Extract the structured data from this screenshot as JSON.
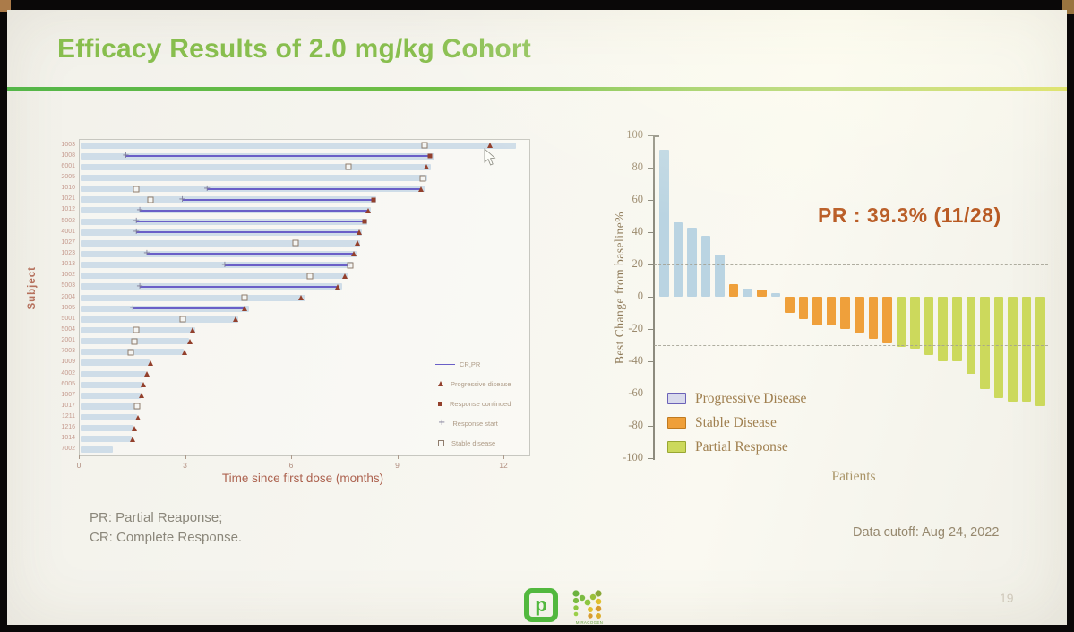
{
  "slide": {
    "title": "Efficacy Results of 2.0 mg/kg Cohort",
    "footnotes": [
      "PR: Partial Reaponse;",
      "CR: Complete Response."
    ],
    "data_cutoff": "Data cutoff: Aug 24, 2022",
    "page_number": "19",
    "logo_m_text": "MIRACOGEN"
  },
  "colors": {
    "title_green": "#88be4e",
    "rule_green": "#54b648",
    "swimmer_bar_blue": "#cfdde8",
    "response_line_purple": "#6a5fc7",
    "marker_dark_red": "#93402c",
    "waterfall_pd_blue": "#bad4e2",
    "waterfall_sd_orange": "#efa03b",
    "waterfall_pr_green": "#ccd95c",
    "annotation_orange": "#b7571f"
  },
  "chart_data": [
    {
      "type": "swimmer",
      "name": "duration-on-treatment",
      "xlabel": "Time since first dose (months)",
      "ylabel": "Subject",
      "xticks": [
        0,
        3,
        6,
        9,
        12
      ],
      "xlim": [
        0,
        12.7
      ],
      "legend": [
        {
          "marker": "line",
          "label": "CR,PR"
        },
        {
          "marker": "triangle",
          "label": "Progressive disease"
        },
        {
          "marker": "filled-square",
          "label": "Response continued"
        },
        {
          "marker": "plus",
          "label": "Response start"
        },
        {
          "marker": "open-square",
          "label": "Stable disease"
        }
      ],
      "subjects": [
        {
          "id": "1003",
          "bar": 12.3,
          "line": null,
          "markers": [
            {
              "type": "open-square",
              "x": 9.75
            },
            {
              "type": "triangle",
              "x": 11.6
            }
          ]
        },
        {
          "id": "1008",
          "bar": 10.0,
          "line": [
            1.3,
            9.9
          ],
          "line_end": "filled-square",
          "markers": []
        },
        {
          "id": "6001",
          "bar": 9.9,
          "line": null,
          "markers": [
            {
              "type": "open-square",
              "x": 7.6
            },
            {
              "type": "triangle",
              "x": 9.8
            }
          ]
        },
        {
          "id": "2005",
          "bar": 9.8,
          "line": null,
          "markers": [
            {
              "type": "open-square",
              "x": 9.7
            }
          ]
        },
        {
          "id": "1010",
          "bar": 9.75,
          "line": [
            3.6,
            9.65
          ],
          "line_end": "triangle",
          "markers": [
            {
              "type": "open-square",
              "x": 1.6
            }
          ]
        },
        {
          "id": "1021",
          "bar": 8.35,
          "line": [
            2.9,
            8.3
          ],
          "line_end": "filled-square",
          "markers": [
            {
              "type": "open-square",
              "x": 2.0
            }
          ]
        },
        {
          "id": "1012",
          "bar": 8.2,
          "line": [
            1.7,
            8.15
          ],
          "line_end": "triangle",
          "markers": []
        },
        {
          "id": "5002",
          "bar": 8.1,
          "line": [
            1.6,
            8.05
          ],
          "line_end": "filled-square",
          "markers": []
        },
        {
          "id": "4001",
          "bar": 7.95,
          "line": [
            1.6,
            7.9
          ],
          "line_end": "triangle",
          "markers": []
        },
        {
          "id": "1027",
          "bar": 7.9,
          "line": null,
          "markers": [
            {
              "type": "open-square",
              "x": 6.1
            },
            {
              "type": "triangle",
              "x": 7.85
            }
          ]
        },
        {
          "id": "1023",
          "bar": 7.8,
          "line": [
            1.9,
            7.75
          ],
          "line_end": "triangle",
          "markers": []
        },
        {
          "id": "1013",
          "bar": 7.7,
          "line": [
            4.1,
            7.65
          ],
          "line_end": "open-square",
          "markers": []
        },
        {
          "id": "1002",
          "bar": 7.55,
          "line": null,
          "markers": [
            {
              "type": "open-square",
              "x": 6.5
            },
            {
              "type": "triangle",
              "x": 7.5
            }
          ]
        },
        {
          "id": "5003",
          "bar": 7.4,
          "line": [
            1.7,
            7.3
          ],
          "line_end": "triangle",
          "markers": []
        },
        {
          "id": "2004",
          "bar": 6.35,
          "line": null,
          "markers": [
            {
              "type": "open-square",
              "x": 4.65
            },
            {
              "type": "triangle",
              "x": 6.25
            }
          ]
        },
        {
          "id": "1005",
          "bar": 4.75,
          "line": [
            1.5,
            4.65
          ],
          "line_end": "triangle",
          "markers": []
        },
        {
          "id": "5001",
          "bar": 4.45,
          "line": null,
          "markers": [
            {
              "type": "open-square",
              "x": 2.9
            },
            {
              "type": "triangle",
              "x": 4.4
            }
          ]
        },
        {
          "id": "5004",
          "bar": 3.25,
          "line": null,
          "markers": [
            {
              "type": "open-square",
              "x": 1.6
            },
            {
              "type": "triangle",
              "x": 3.2
            }
          ]
        },
        {
          "id": "2001",
          "bar": 3.05,
          "line": null,
          "markers": [
            {
              "type": "open-square",
              "x": 1.55
            },
            {
              "type": "triangle",
              "x": 3.1
            }
          ]
        },
        {
          "id": "7003",
          "bar": 2.9,
          "line": null,
          "markers": [
            {
              "type": "open-square",
              "x": 1.45
            },
            {
              "type": "triangle",
              "x": 2.95
            }
          ]
        },
        {
          "id": "1009",
          "bar": 1.95,
          "line": null,
          "markers": [
            {
              "type": "triangle",
              "x": 2.0
            }
          ]
        },
        {
          "id": "4002",
          "bar": 1.85,
          "line": null,
          "markers": [
            {
              "type": "triangle",
              "x": 1.9
            }
          ]
        },
        {
          "id": "6005",
          "bar": 1.75,
          "line": null,
          "markers": [
            {
              "type": "triangle",
              "x": 1.8
            }
          ]
        },
        {
          "id": "1007",
          "bar": 1.7,
          "line": null,
          "markers": [
            {
              "type": "triangle",
              "x": 1.75
            }
          ]
        },
        {
          "id": "1017",
          "bar": 1.68,
          "line": null,
          "markers": [
            {
              "type": "open-square",
              "x": 1.62
            }
          ]
        },
        {
          "id": "1211",
          "bar": 1.6,
          "line": null,
          "markers": [
            {
              "type": "triangle",
              "x": 1.65
            }
          ]
        },
        {
          "id": "1216",
          "bar": 1.5,
          "line": null,
          "markers": [
            {
              "type": "triangle",
              "x": 1.55
            }
          ]
        },
        {
          "id": "1014",
          "bar": 1.45,
          "line": null,
          "markers": [
            {
              "type": "triangle",
              "x": 1.5
            }
          ]
        },
        {
          "id": "7002",
          "bar": 0.9,
          "line": null,
          "markers": []
        }
      ]
    },
    {
      "type": "bar",
      "name": "waterfall-best-change",
      "annotation": "PR : 39.3%  (11/28)",
      "xlabel": "Patients",
      "ylabel": "Best Change from baseline%",
      "ylim": [
        -100,
        100
      ],
      "yticks": [
        100,
        80,
        60,
        40,
        20,
        0,
        -20,
        -40,
        -60,
        -80,
        -100
      ],
      "reference_lines": [
        20,
        -30
      ],
      "legend": [
        {
          "group": "PD",
          "label": "Progressive Disease"
        },
        {
          "group": "SD",
          "label": "Stable Disease"
        },
        {
          "group": "PR",
          "label": "Partial Response"
        }
      ],
      "bars": [
        {
          "value": 91,
          "group": "PD"
        },
        {
          "value": 46,
          "group": "PD"
        },
        {
          "value": 43,
          "group": "PD"
        },
        {
          "value": 38,
          "group": "PD"
        },
        {
          "value": 26,
          "group": "PD"
        },
        {
          "value": 8,
          "group": "SD"
        },
        {
          "value": 5,
          "group": "PD"
        },
        {
          "value": 4.5,
          "group": "SD"
        },
        {
          "value": 2,
          "group": "PD"
        },
        {
          "value": -10,
          "group": "SD"
        },
        {
          "value": -14,
          "group": "SD"
        },
        {
          "value": -18,
          "group": "SD"
        },
        {
          "value": -18,
          "group": "SD"
        },
        {
          "value": -20,
          "group": "SD"
        },
        {
          "value": -22,
          "group": "SD"
        },
        {
          "value": -26,
          "group": "SD"
        },
        {
          "value": -29,
          "group": "SD"
        },
        {
          "value": -31,
          "group": "PR"
        },
        {
          "value": -32,
          "group": "PR"
        },
        {
          "value": -36,
          "group": "PR"
        },
        {
          "value": -40,
          "group": "PR"
        },
        {
          "value": -40,
          "group": "PR"
        },
        {
          "value": -48,
          "group": "PR"
        },
        {
          "value": -57,
          "group": "PR"
        },
        {
          "value": -63,
          "group": "PR"
        },
        {
          "value": -65,
          "group": "PR"
        },
        {
          "value": -65,
          "group": "PR"
        },
        {
          "value": -68,
          "group": "PR"
        }
      ]
    }
  ]
}
